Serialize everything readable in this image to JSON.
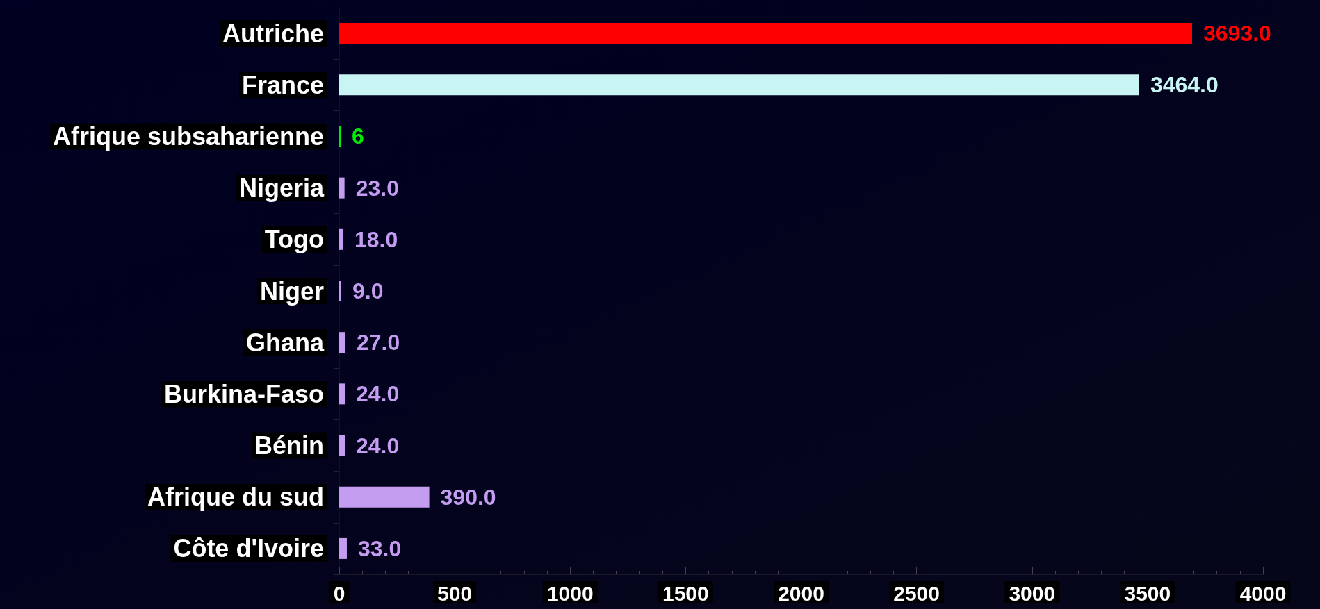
{
  "chart_data": {
    "type": "bar",
    "orientation": "horizontal",
    "categories": [
      "Autriche",
      "France",
      "Afrique subsaharienne",
      "Nigeria",
      "Togo",
      "Niger",
      "Ghana",
      "Burkina-Faso",
      "Bénin",
      "Afrique du sud",
      "Côte d'Ivoire"
    ],
    "values": [
      3693,
      3464,
      6,
      23,
      18,
      9,
      27,
      24,
      24,
      390,
      33
    ],
    "colors": [
      "#ff0000",
      "#c8f4f4",
      "#00ee00",
      "#c49cf0",
      "#c49cf0",
      "#c49cf0",
      "#c49cf0",
      "#c49cf0",
      "#c49cf0",
      "#c49cf0",
      "#c49cf0"
    ],
    "value_labels": [
      "3693.0",
      "3464.0",
      "6",
      "23.0",
      "18.0",
      "9.0",
      "27.0",
      "24.0",
      "24.0",
      "390.0",
      "33.0"
    ],
    "xlim": [
      0,
      4000
    ],
    "xticks": [
      0,
      500,
      1000,
      1500,
      2000,
      2500,
      3000,
      3500,
      4000
    ]
  }
}
